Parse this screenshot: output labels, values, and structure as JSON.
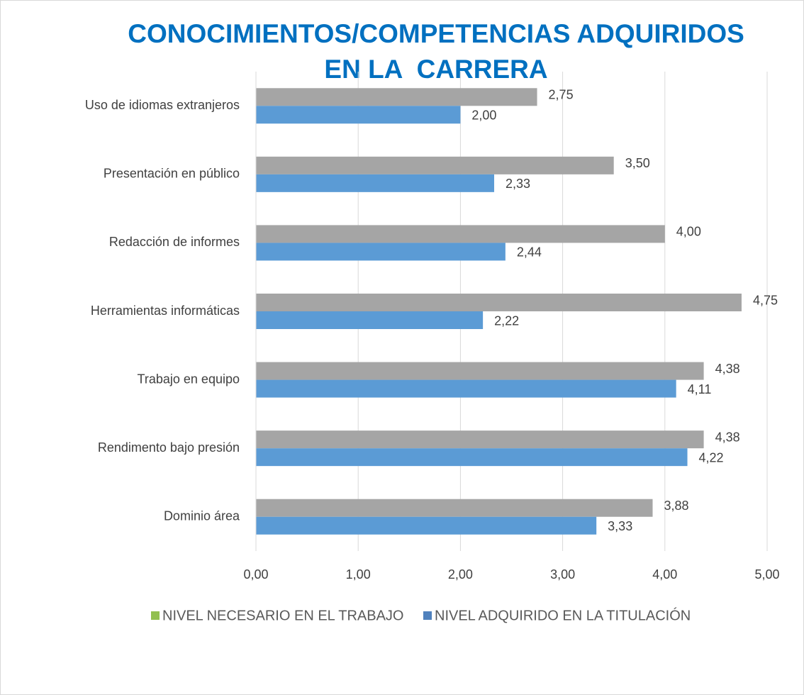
{
  "chart_data": {
    "type": "barh",
    "title": [
      "CONOCIMIENTOS/COMPETENCIAS ADQUIRIDOS",
      "EN LA  CARRERA"
    ],
    "categories": [
      "Uso de idiomas extranjeros",
      "Presentación en público",
      "Redacción de informes",
      "Herramientas informáticas",
      "Trabajo en equipo",
      "Rendimento bajo presión",
      "Dominio área"
    ],
    "series": [
      {
        "name": "NIVEL NECESARIO EN EL TRABAJO",
        "color": "#a5a5a5",
        "legend_color": "#92c050",
        "values": [
          2.75,
          3.5,
          4,
          4.75,
          4.38,
          4.38,
          3.88
        ],
        "value_labels": [
          "2,75",
          "3,50",
          "4,00",
          "4,75",
          "4,38",
          "4,38",
          "3,88"
        ]
      },
      {
        "name": "NIVEL ADQUIRIDO EN LA TITULACIÓN",
        "color": "#5b9bd5",
        "legend_color": "#4f81bd",
        "values": [
          2,
          2.33,
          2.44,
          2.22,
          4.11,
          4.22,
          3.33
        ],
        "value_labels": [
          "2,00",
          "2,33",
          "2,44",
          "2,22",
          "4,11",
          "4,22",
          "3,33"
        ]
      }
    ],
    "xlim": [
      0,
      5
    ],
    "xticks": [
      {
        "value": 0,
        "label": "0,00"
      },
      {
        "value": 1,
        "label": "1,00"
      },
      {
        "value": 2,
        "label": "2,00"
      },
      {
        "value": 3,
        "label": "3,00"
      },
      {
        "value": 4,
        "label": "4,00"
      },
      {
        "value": 5,
        "label": "5,00"
      }
    ],
    "grid": true,
    "legend": "bottom"
  }
}
